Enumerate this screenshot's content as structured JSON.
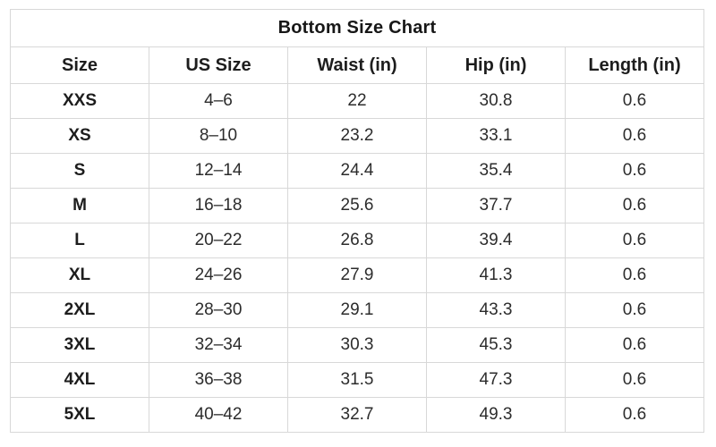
{
  "title": "Bottom Size Chart",
  "colors": {
    "background": "#ffffff",
    "border": "#d8d8d8",
    "header_text": "#1d1d1d",
    "body_text": "#2c2c2c"
  },
  "chart_data": {
    "type": "table",
    "title": "Bottom Size Chart",
    "columns": [
      "Size",
      "US Size",
      "Waist (in)",
      "Hip (in)",
      "Length (in)"
    ],
    "rows": [
      [
        "XXS",
        "4–6",
        "22",
        "30.8",
        "0.6"
      ],
      [
        "XS",
        "8–10",
        "23.2",
        "33.1",
        "0.6"
      ],
      [
        "S",
        "12–14",
        "24.4",
        "35.4",
        "0.6"
      ],
      [
        "M",
        "16–18",
        "25.6",
        "37.7",
        "0.6"
      ],
      [
        "L",
        "20–22",
        "26.8",
        "39.4",
        "0.6"
      ],
      [
        "XL",
        "24–26",
        "27.9",
        "41.3",
        "0.6"
      ],
      [
        "2XL",
        "28–30",
        "29.1",
        "43.3",
        "0.6"
      ],
      [
        "3XL",
        "32–34",
        "30.3",
        "45.3",
        "0.6"
      ],
      [
        "4XL",
        "36–38",
        "31.5",
        "47.3",
        "0.6"
      ],
      [
        "5XL",
        "40–42",
        "32.7",
        "49.3",
        "0.6"
      ]
    ],
    "layout": {
      "grid": true,
      "title_position": "top-merged-row",
      "column_count": 5,
      "row_count": 10
    }
  }
}
